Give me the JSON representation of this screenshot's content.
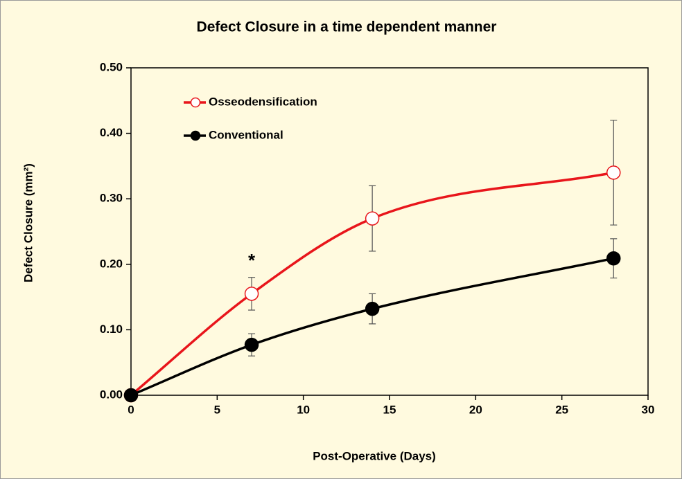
{
  "chart_data": {
    "type": "line",
    "title": "Defect Closure in a time dependent manner",
    "xlabel": "Post-Operative (Days)",
    "ylabel": "Defect Closure (mm²)",
    "x": [
      0,
      7,
      14,
      28
    ],
    "series": [
      {
        "name": "Osseodensification",
        "color": "#e8151b",
        "marker_fill": "#ffffff",
        "values": [
          0,
          0.155,
          0.27,
          0.34
        ],
        "errors": [
          null,
          0.025,
          0.05,
          0.08
        ]
      },
      {
        "name": "Conventional",
        "color": "#000000",
        "marker_fill": "#000000",
        "values": [
          0,
          0.077,
          0.132,
          0.209
        ],
        "errors": [
          null,
          0.017,
          0.023,
          0.03
        ]
      }
    ],
    "annotations": [
      {
        "text": "*",
        "x": 7,
        "y": 0.21
      }
    ],
    "xlim": [
      0,
      30
    ],
    "xticks": [
      0,
      5,
      10,
      15,
      20,
      25,
      30
    ],
    "ylim": [
      0,
      0.5
    ],
    "yticks": [
      {
        "value": 0,
        "label": "0.00"
      },
      {
        "value": 0.1,
        "label": "0.10"
      },
      {
        "value": 0.2,
        "label": "0.20"
      },
      {
        "value": 0.3,
        "label": "0.30"
      },
      {
        "value": 0.4,
        "label": "0.40"
      },
      {
        "value": 0.5,
        "label": "0.50"
      }
    ],
    "legend": "upper left",
    "smooth": true
  }
}
